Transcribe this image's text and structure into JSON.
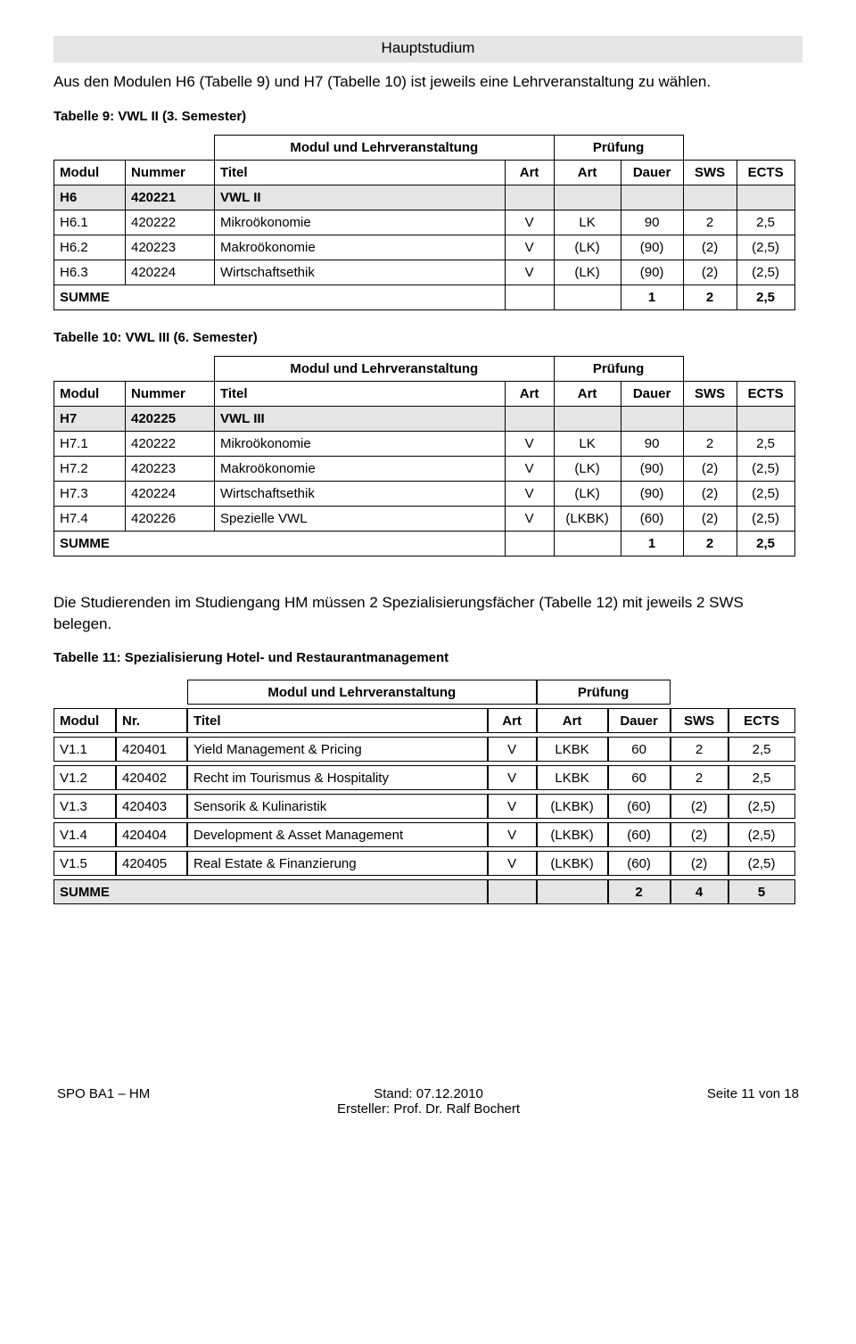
{
  "header": "Hauptstudium",
  "intro": "Aus den Modulen H6 (Tabelle 9) und H7 (Tabelle 10) ist jeweils eine Lehrveranstaltung zu wählen.",
  "section9": {
    "title": "Tabelle 9: VWL II (3. Semester)",
    "group1": "Modul und Lehrveranstaltung",
    "group2": "Prüfung",
    "cols": {
      "c1": "Modul",
      "c2": "Nummer",
      "c3": "Titel",
      "c4": "Art",
      "c5": "Art",
      "c6": "Dauer",
      "c7": "SWS",
      "c8": "ECTS"
    },
    "moduleRow": {
      "modul": "H6",
      "nummer": "420221",
      "titel": "VWL II"
    },
    "rows": [
      {
        "modul": "H6.1",
        "nummer": "420222",
        "titel": "Mikroökonomie",
        "art1": "V",
        "art2": "LK",
        "dauer": "90",
        "sws": "2",
        "ects": "2,5"
      },
      {
        "modul": "H6.2",
        "nummer": "420223",
        "titel": "Makroökonomie",
        "art1": "V",
        "art2": "(LK)",
        "dauer": "(90)",
        "sws": "(2)",
        "ects": "(2,5)"
      },
      {
        "modul": "H6.3",
        "nummer": "420224",
        "titel": "Wirtschaftsethik",
        "art1": "V",
        "art2": "(LK)",
        "dauer": "(90)",
        "sws": "(2)",
        "ects": "(2,5)"
      }
    ],
    "sum": {
      "label": "SUMME",
      "dauer": "1",
      "sws": "2",
      "ects": "2,5"
    }
  },
  "section10": {
    "title": "Tabelle 10: VWL III (6. Semester)",
    "group1": "Modul und Lehrveranstaltung",
    "group2": "Prüfung",
    "cols": {
      "c1": "Modul",
      "c2": "Nummer",
      "c3": "Titel",
      "c4": "Art",
      "c5": "Art",
      "c6": "Dauer",
      "c7": "SWS",
      "c8": "ECTS"
    },
    "moduleRow": {
      "modul": "H7",
      "nummer": "420225",
      "titel": "VWL III"
    },
    "rows": [
      {
        "modul": "H7.1",
        "nummer": "420222",
        "titel": "Mikroökonomie",
        "art1": "V",
        "art2": "LK",
        "dauer": "90",
        "sws": "2",
        "ects": "2,5"
      },
      {
        "modul": "H7.2",
        "nummer": "420223",
        "titel": "Makroökonomie",
        "art1": "V",
        "art2": "(LK)",
        "dauer": "(90)",
        "sws": "(2)",
        "ects": "(2,5)"
      },
      {
        "modul": "H7.3",
        "nummer": "420224",
        "titel": "Wirtschaftsethik",
        "art1": "V",
        "art2": "(LK)",
        "dauer": "(90)",
        "sws": "(2)",
        "ects": "(2,5)"
      },
      {
        "modul": "H7.4",
        "nummer": "420226",
        "titel": "Spezielle VWL",
        "art1": "V",
        "art2": "(LKBK)",
        "dauer": "(60)",
        "sws": "(2)",
        "ects": "(2,5)"
      }
    ],
    "sum": {
      "label": "SUMME",
      "dauer": "1",
      "sws": "2",
      "ects": "2,5"
    }
  },
  "midText": "Die Studierenden im Studiengang HM müssen 2 Spezialisierungsfächer (Tabelle 12) mit jeweils 2 SWS belegen.",
  "section11": {
    "title": "Tabelle 11: Spezialisierung Hotel- und Restaurantmanagement",
    "group1": "Modul und Lehrveranstaltung",
    "group2": "Prüfung",
    "cols": {
      "c1": "Modul",
      "c2": "Nr.",
      "c3": "Titel",
      "c4": "Art",
      "c5": "Art",
      "c6": "Dauer",
      "c7": "SWS",
      "c8": "ECTS"
    },
    "rows": [
      {
        "modul": "V1.1",
        "nummer": "420401",
        "titel": "Yield Management & Pricing",
        "art1": "V",
        "art2": "LKBK",
        "dauer": "60",
        "sws": "2",
        "ects": "2,5"
      },
      {
        "modul": "V1.2",
        "nummer": "420402",
        "titel": "Recht im Tourismus & Hospitality",
        "art1": "V",
        "art2": "LKBK",
        "dauer": "60",
        "sws": "2",
        "ects": "2,5"
      },
      {
        "modul": "V1.3",
        "nummer": "420403",
        "titel": "Sensorik & Kulinaristik",
        "art1": "V",
        "art2": "(LKBK)",
        "dauer": "(60)",
        "sws": "(2)",
        "ects": "(2,5)"
      },
      {
        "modul": "V1.4",
        "nummer": "420404",
        "titel": "Development & Asset Management",
        "art1": "V",
        "art2": "(LKBK)",
        "dauer": "(60)",
        "sws": "(2)",
        "ects": "(2,5)"
      },
      {
        "modul": "V1.5",
        "nummer": "420405",
        "titel": "Real Estate & Finanzierung",
        "art1": "V",
        "art2": "(LKBK)",
        "dauer": "(60)",
        "sws": "(2)",
        "ects": "(2,5)"
      }
    ],
    "sum": {
      "label": "SUMME",
      "dauer": "2",
      "sws": "4",
      "ects": "5"
    }
  },
  "footer": {
    "left": "SPO BA1 – HM",
    "centerTop": "Stand: 07.12.2010",
    "centerBottom": "Ersteller: Prof. Dr. Ralf Bochert",
    "right": "Seite 11 von 18"
  }
}
